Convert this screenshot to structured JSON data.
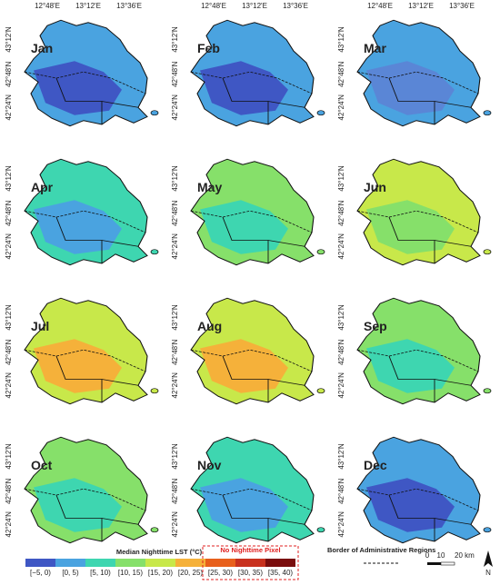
{
  "x_labels": [
    "12°48'E",
    "13°12'E",
    "13°36'E"
  ],
  "y_labels": [
    "43°12'N",
    "42°48'N",
    "42°24'N"
  ],
  "panels": [
    {
      "label": "Jan",
      "fill": "#4aa3e0",
      "patch": "#3f57c4"
    },
    {
      "label": "Feb",
      "fill": "#4aa3e0",
      "patch": "#3f57c4"
    },
    {
      "label": "Mar",
      "fill": "#4aa3e0",
      "patch": "#5a86d6"
    },
    {
      "label": "Apr",
      "fill": "#3ed6b0",
      "patch": "#4aa3e0"
    },
    {
      "label": "May",
      "fill": "#86e06a",
      "patch": "#3ed6b0"
    },
    {
      "label": "Jun",
      "fill": "#c8e84a",
      "patch": "#86e06a"
    },
    {
      "label": "Jul",
      "fill": "#c8e84a",
      "patch": "#f5b13a"
    },
    {
      "label": "Aug",
      "fill": "#c8e84a",
      "patch": "#f5b13a"
    },
    {
      "label": "Sep",
      "fill": "#86e06a",
      "patch": "#3ed6b0"
    },
    {
      "label": "Oct",
      "fill": "#86e06a",
      "patch": "#3ed6b0"
    },
    {
      "label": "Nov",
      "fill": "#3ed6b0",
      "patch": "#4aa3e0"
    },
    {
      "label": "Dec",
      "fill": "#4aa3e0",
      "patch": "#3f57c4"
    }
  ],
  "legend": {
    "title": "Median Nighttime LST (°C)",
    "no_pixel_title": "No Nighttime Pixel",
    "classes": [
      {
        "label": "[−5, 0)",
        "color": "#3f57c4"
      },
      {
        "label": "[0, 5)",
        "color": "#4aa3e0"
      },
      {
        "label": "[5, 10)",
        "color": "#3ed6b0"
      },
      {
        "label": "[10, 15)",
        "color": "#86e06a"
      },
      {
        "label": "[15, 20)",
        "color": "#c8e84a"
      },
      {
        "label": "[20, 25)",
        "color": "#f5b13a"
      },
      {
        "label": "[25, 30)",
        "color": "#e8601c"
      },
      {
        "label": "[30, 35)",
        "color": "#c8311e"
      },
      {
        "label": "[35, 40)",
        "color": "#7a0d0d"
      }
    ],
    "border_title": "Border of Administrative Regions",
    "scale_labels": [
      "0",
      "10",
      "20 km"
    ],
    "north": "N"
  }
}
